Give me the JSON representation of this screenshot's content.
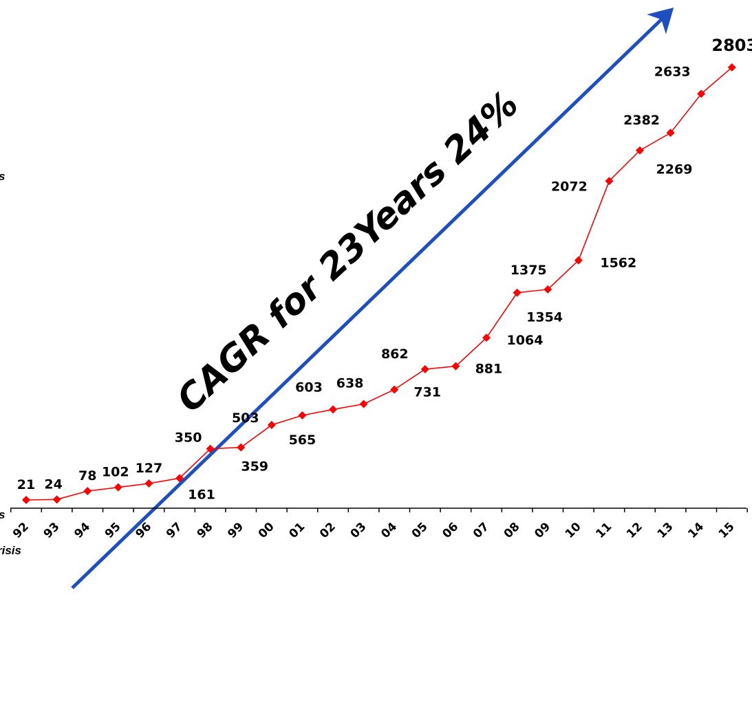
{
  "chart_data": {
    "type": "line",
    "categories": [
      "92",
      "93",
      "94",
      "95",
      "96",
      "97",
      "98",
      "99",
      "00",
      "01",
      "02",
      "03",
      "04",
      "05",
      "06",
      "07",
      "08",
      "09",
      "10",
      "11",
      "12",
      "13",
      "14",
      "15"
    ],
    "values": [
      21,
      24,
      78,
      102,
      127,
      161,
      350,
      359,
      503,
      565,
      603,
      638,
      731,
      862,
      881,
      1064,
      1354,
      1375,
      1562,
      2072,
      2269,
      2382,
      2633,
      2803
    ],
    "data_labels": [
      "21",
      "24",
      "78",
      "102",
      "127",
      "161",
      "350",
      "359",
      "503",
      "565",
      "603",
      "638",
      "731",
      "862",
      "881",
      "1064",
      "1354",
      "1375",
      "1562",
      "2072",
      "2269",
      "2382",
      "2633",
      "2803"
    ],
    "ylim": [
      0,
      2900
    ],
    "grid": false,
    "line_color": "#ff0000",
    "marker": "diamond",
    "annotation": "CAGR for 23Years 24%",
    "arrow_color": "#1f4fbf",
    "cut_off_left_text": [
      "s",
      "s",
      "risis"
    ]
  }
}
